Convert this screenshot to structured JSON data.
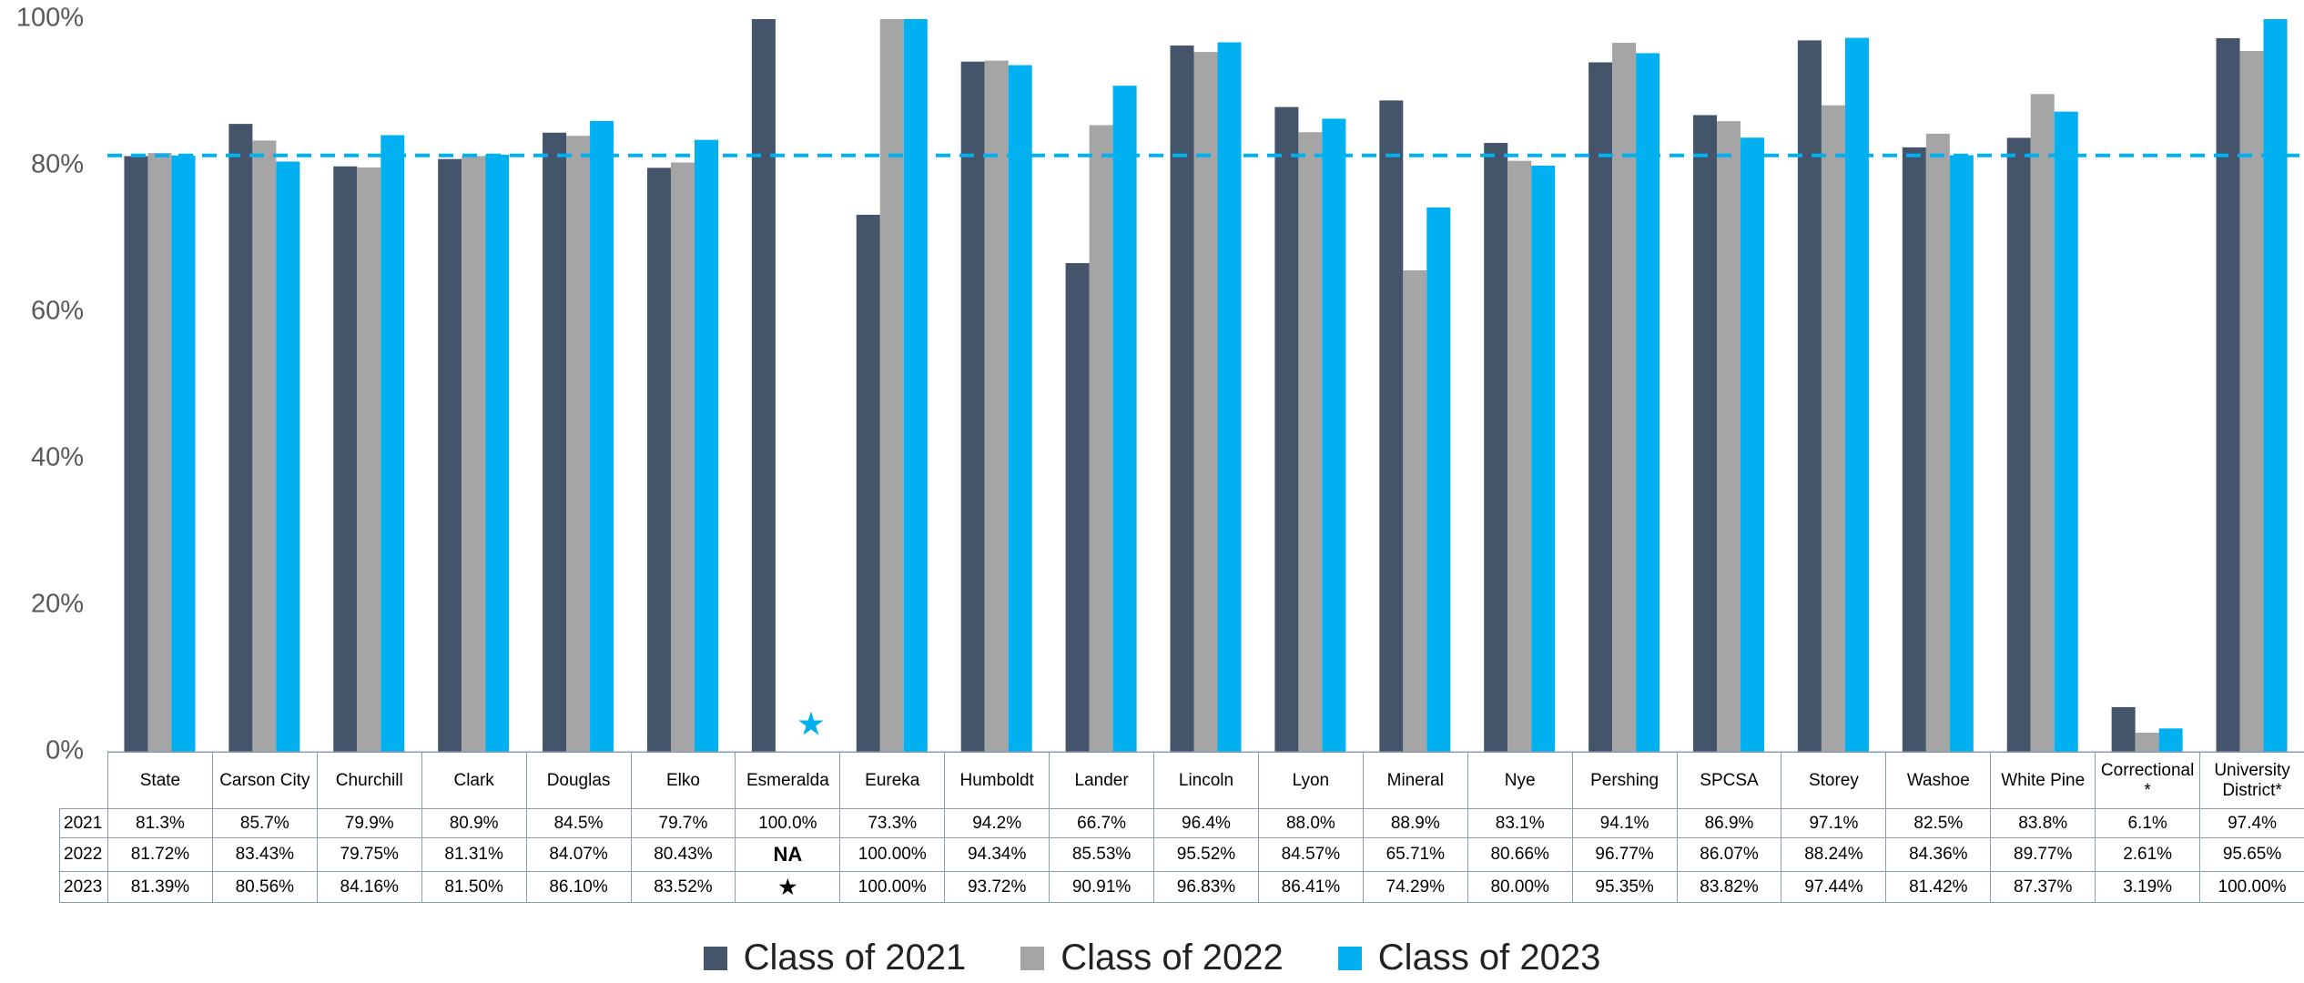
{
  "chart_data": {
    "type": "bar",
    "categories": [
      "State",
      "Carson City",
      "Churchill",
      "Clark",
      "Douglas",
      "Elko",
      "Esmeralda",
      "Eureka",
      "Humboldt",
      "Lander",
      "Lincoln",
      "Lyon",
      "Mineral",
      "Nye",
      "Pershing",
      "SPCSA",
      "Storey",
      "Washoe",
      "White Pine",
      "Correctional *",
      "University District*"
    ],
    "table_row_labels": [
      "2021",
      "2022",
      "2023"
    ],
    "series": [
      {
        "name": "Class of 2021",
        "color": "#44546a",
        "values": [
          81.3,
          85.7,
          79.9,
          80.9,
          84.5,
          79.7,
          100.0,
          73.3,
          94.2,
          66.7,
          96.4,
          88.0,
          88.9,
          83.1,
          94.1,
          86.9,
          97.1,
          82.5,
          83.8,
          6.1,
          97.4
        ],
        "value_labels": [
          "81.3%",
          "85.7%",
          "79.9%",
          "80.9%",
          "84.5%",
          "79.7%",
          "100.0%",
          "73.3%",
          "94.2%",
          "66.7%",
          "96.4%",
          "88.0%",
          "88.9%",
          "83.1%",
          "94.1%",
          "86.9%",
          "97.1%",
          "82.5%",
          "83.8%",
          "6.1%",
          "97.4%"
        ]
      },
      {
        "name": "Class of 2022",
        "color": "#a5a5a5",
        "values": [
          81.72,
          83.43,
          79.75,
          81.31,
          84.07,
          80.43,
          null,
          100.0,
          94.34,
          85.53,
          95.52,
          84.57,
          65.71,
          80.66,
          96.77,
          86.07,
          88.24,
          84.36,
          89.77,
          2.61,
          95.65
        ],
        "value_labels": [
          "81.72%",
          "83.43%",
          "79.75%",
          "81.31%",
          "84.07%",
          "80.43%",
          "NA",
          "100.00%",
          "94.34%",
          "85.53%",
          "95.52%",
          "84.57%",
          "65.71%",
          "80.66%",
          "96.77%",
          "86.07%",
          "88.24%",
          "84.36%",
          "89.77%",
          "2.61%",
          "95.65%"
        ]
      },
      {
        "name": "Class of 2023",
        "color": "#00b0f0",
        "values": [
          81.39,
          80.56,
          84.16,
          81.5,
          86.1,
          83.52,
          null,
          100.0,
          93.72,
          90.91,
          96.83,
          86.41,
          74.29,
          80.0,
          95.35,
          83.82,
          97.44,
          81.42,
          87.37,
          3.19,
          100.0
        ],
        "value_labels": [
          "81.39%",
          "80.56%",
          "84.16%",
          "81.50%",
          "86.10%",
          "83.52%",
          "★",
          "100.00%",
          "93.72%",
          "90.91%",
          "96.83%",
          "86.41%",
          "74.29%",
          "80.00%",
          "95.35%",
          "83.82%",
          "97.44%",
          "81.42%",
          "87.37%",
          "3.19%",
          "100.00%"
        ]
      }
    ],
    "annotation": "★",
    "reference_line": {
      "value": 81.39,
      "color": "#00b0f0"
    },
    "ylim": [
      0,
      100
    ],
    "yticks": [
      {
        "value": 0,
        "label": "0%"
      },
      {
        "value": 20,
        "label": "20%"
      },
      {
        "value": 40,
        "label": "40%"
      },
      {
        "value": 60,
        "label": "60%"
      },
      {
        "value": 80,
        "label": "80%"
      },
      {
        "value": 100,
        "label": "100%"
      }
    ],
    "grid": false,
    "legend": "bottom"
  }
}
